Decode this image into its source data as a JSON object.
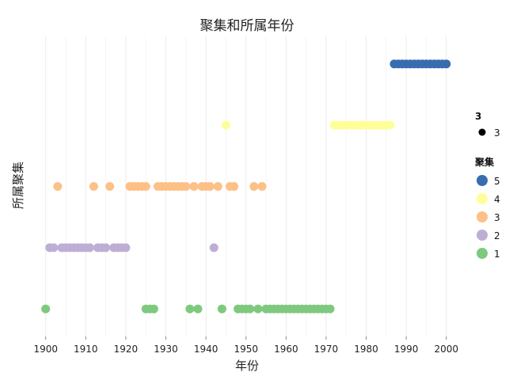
{
  "chart_data": {
    "type": "scatter",
    "title": "聚集和所属年份",
    "xlabel": "年份",
    "ylabel": "所属聚集",
    "xlim": [
      1896.5,
      2004
    ],
    "ylim": [
      0.55,
      5.45
    ],
    "x_ticks": [
      1900,
      1910,
      1920,
      1930,
      1940,
      1950,
      1960,
      1970,
      1980,
      1990,
      2000
    ],
    "grid": true,
    "legend_position": "right",
    "colors": {
      "5": "#386cb0",
      "4": "#ffff99",
      "3": "#fdc086",
      "2": "#beaed4",
      "1": "#7fc97f"
    },
    "size_legend": {
      "title": "3",
      "label": "3",
      "color": "#000000"
    },
    "color_legend": {
      "title": "聚集",
      "entries": [
        {
          "label": "5",
          "color": "#386cb0"
        },
        {
          "label": "4",
          "color": "#ffff99"
        },
        {
          "label": "3",
          "color": "#fdc086"
        },
        {
          "label": "2",
          "color": "#beaed4"
        },
        {
          "label": "1",
          "color": "#7fc97f"
        }
      ]
    },
    "series": [
      {
        "name": "1",
        "y": 1,
        "color": "#7fc97f",
        "x": [
          1900,
          1925,
          1926,
          1927,
          1936,
          1938,
          1944,
          1948,
          1949,
          1950,
          1951,
          1953,
          1955,
          1956,
          1957,
          1958,
          1959,
          1960,
          1961,
          1962,
          1963,
          1964,
          1965,
          1966,
          1967,
          1968,
          1969,
          1970,
          1971
        ]
      },
      {
        "name": "2",
        "y": 2,
        "color": "#beaed4",
        "x": [
          1901,
          1902,
          1904,
          1905,
          1906,
          1907,
          1908,
          1909,
          1910,
          1911,
          1913,
          1914,
          1915,
          1917,
          1918,
          1919,
          1920,
          1942
        ]
      },
      {
        "name": "3",
        "y": 3,
        "color": "#fdc086",
        "x": [
          1903,
          1912,
          1916,
          1921,
          1922,
          1923,
          1924,
          1925,
          1928,
          1929,
          1930,
          1931,
          1932,
          1933,
          1934,
          1935,
          1937,
          1939,
          1940,
          1941,
          1943,
          1946,
          1947,
          1952,
          1954
        ]
      },
      {
        "name": "4",
        "y": 4,
        "color": "#ffff99",
        "x": [
          1945,
          1972,
          1973,
          1974,
          1975,
          1976,
          1977,
          1978,
          1979,
          1980,
          1981,
          1982,
          1983,
          1984,
          1985,
          1986
        ]
      },
      {
        "name": "5",
        "y": 5,
        "color": "#386cb0",
        "x": [
          1987,
          1988,
          1989,
          1990,
          1991,
          1992,
          1993,
          1994,
          1995,
          1996,
          1997,
          1998,
          1999,
          2000
        ]
      }
    ]
  }
}
